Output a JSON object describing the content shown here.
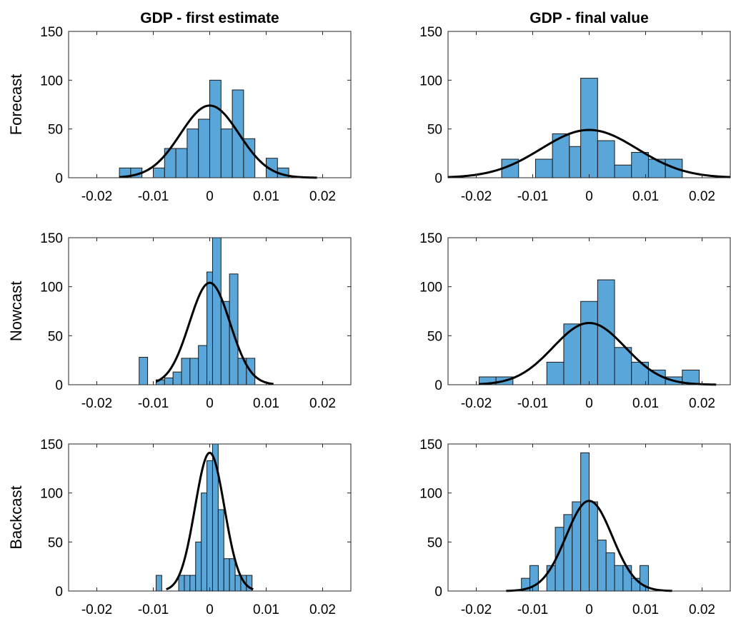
{
  "column_titles": [
    "GDP - first estimate",
    "GDP - final value"
  ],
  "row_labels": [
    "Forecast",
    "Nowcast",
    "Backcast"
  ],
  "colors": {
    "bar_fill": "#5ba6d8",
    "bar_stroke": "#1a1a1a",
    "fit_line": "#000000",
    "axis": "#262626"
  },
  "chart_data": [
    {
      "type": "bar",
      "subtype": "histogram-with-normal-fit",
      "title": "GDP - first estimate",
      "ylabel": "Forecast",
      "xlim": [
        -0.025,
        0.025
      ],
      "ylim": [
        0,
        150
      ],
      "xticks": [
        -0.02,
        -0.01,
        0,
        0.01,
        0.02
      ],
      "xtick_labels": [
        "-0.02",
        "-0.01",
        "0",
        "0.01",
        "0.02"
      ],
      "yticks": [
        0,
        50,
        100,
        150
      ],
      "ytick_labels": [
        "0",
        "50",
        "100",
        "150"
      ],
      "bin_edges": [
        -0.016,
        -0.014,
        -0.012,
        -0.01,
        -0.008,
        -0.006,
        -0.004,
        -0.002,
        0,
        0.002,
        0.004,
        0.006,
        0.008,
        0.01,
        0.012,
        0.014
      ],
      "counts": [
        10,
        10,
        0,
        10,
        30,
        30,
        50,
        60,
        100,
        50,
        90,
        40,
        0,
        20,
        10
      ],
      "fit": {
        "mean": 0.0,
        "peak": 74,
        "sd": 0.0052,
        "x_range": [
          -0.016,
          0.019
        ]
      }
    },
    {
      "type": "bar",
      "subtype": "histogram-with-normal-fit",
      "title": "GDP - final value",
      "ylabel": "",
      "xlim": [
        -0.025,
        0.025
      ],
      "ylim": [
        0,
        150
      ],
      "xticks": [
        -0.02,
        -0.01,
        0,
        0.01,
        0.02
      ],
      "xtick_labels": [
        "-0.02",
        "-0.01",
        "0",
        "0.01",
        "0.02"
      ],
      "yticks": [
        0,
        50,
        100,
        150
      ],
      "ytick_labels": [
        "0",
        "50",
        "100",
        "150"
      ],
      "bin_edges": [
        -0.0185,
        -0.0155,
        -0.0125,
        -0.0095,
        -0.0065,
        -0.0035,
        -0.0015,
        0.0015,
        0.0045,
        0.0075,
        0.0105,
        0.0135,
        0.0165
      ],
      "counts": [
        0,
        19,
        0,
        19,
        45,
        32,
        102,
        38,
        13,
        26,
        19,
        19
      ],
      "fit": {
        "mean": 0.0,
        "peak": 49,
        "sd": 0.0085,
        "x_range": [
          -0.025,
          0.025
        ]
      }
    },
    {
      "type": "bar",
      "subtype": "histogram-with-normal-fit",
      "title": "",
      "ylabel": "Nowcast",
      "xlim": [
        -0.025,
        0.025
      ],
      "ylim": [
        0,
        150
      ],
      "xticks": [
        -0.02,
        -0.01,
        0,
        0.01,
        0.02
      ],
      "xtick_labels": [
        "-0.02",
        "-0.01",
        "0",
        "0.01",
        "0.02"
      ],
      "yticks": [
        0,
        50,
        100,
        150
      ],
      "ytick_labels": [
        "0",
        "50",
        "100",
        "150"
      ],
      "bin_edges": [
        -0.0125,
        -0.011,
        -0.0095,
        -0.008,
        -0.0065,
        -0.005,
        -0.0035,
        -0.002,
        -0.0005,
        0.0005,
        0.002,
        0.0035,
        0.005,
        0.0065,
        0.008
      ],
      "counts": [
        28,
        0,
        5,
        7,
        13,
        27,
        27,
        40,
        115,
        150,
        85,
        113,
        27,
        27,
        27
      ],
      "fit": {
        "mean": 0.0,
        "peak": 104,
        "sd": 0.0036,
        "x_range": [
          -0.0095,
          0.0113
        ]
      }
    },
    {
      "type": "bar",
      "subtype": "histogram-with-normal-fit",
      "title": "",
      "ylabel": "",
      "xlim": [
        -0.025,
        0.025
      ],
      "ylim": [
        0,
        150
      ],
      "xticks": [
        -0.02,
        -0.01,
        0,
        0.01,
        0.02
      ],
      "xtick_labels": [
        "-0.02",
        "-0.01",
        "0",
        "0.01",
        "0.02"
      ],
      "yticks": [
        0,
        50,
        100,
        150
      ],
      "ytick_labels": [
        "0",
        "50",
        "100",
        "150"
      ],
      "bin_edges": [
        -0.0195,
        -0.0165,
        -0.0135,
        -0.0105,
        -0.0075,
        -0.0045,
        -0.0015,
        0.0015,
        0.0045,
        0.0075,
        0.0105,
        0.0135,
        0.0165,
        0.0195
      ],
      "counts": [
        8,
        8,
        0,
        0,
        23,
        62,
        85,
        107,
        38,
        23,
        15,
        8,
        15
      ],
      "fit": {
        "mean": 0.0,
        "peak": 63,
        "sd": 0.0064,
        "x_range": [
          -0.0195,
          0.0225
        ]
      }
    },
    {
      "type": "bar",
      "subtype": "histogram-with-normal-fit",
      "title": "",
      "ylabel": "Backcast",
      "xlim": [
        -0.025,
        0.025
      ],
      "ylim": [
        0,
        150
      ],
      "xticks": [
        -0.02,
        -0.01,
        0,
        0.01,
        0.02
      ],
      "xtick_labels": [
        "-0.02",
        "-0.01",
        "0",
        "0.01",
        "0.02"
      ],
      "yticks": [
        0,
        50,
        100,
        150
      ],
      "ytick_labels": [
        "0",
        "50",
        "100",
        "150"
      ],
      "bin_edges": [
        -0.0095,
        -0.0085,
        -0.0075,
        -0.0065,
        -0.0055,
        -0.0045,
        -0.0035,
        -0.0025,
        -0.0015,
        -0.0005,
        0.0005,
        0.0015,
        0.0025,
        0.0035,
        0.0045,
        0.0055,
        0.0065,
        0.0075
      ],
      "counts": [
        16,
        0,
        0,
        0,
        16,
        16,
        16,
        50,
        100,
        133,
        150,
        83,
        33,
        33,
        16,
        16,
        16
      ],
      "fit": {
        "mean": 0.0,
        "peak": 141,
        "sd": 0.0026,
        "x_range": [
          -0.0077,
          0.0077
        ]
      }
    },
    {
      "type": "bar",
      "subtype": "histogram-with-normal-fit",
      "title": "",
      "ylabel": "",
      "xlim": [
        -0.025,
        0.025
      ],
      "ylim": [
        0,
        150
      ],
      "xticks": [
        -0.02,
        -0.01,
        0,
        0.01,
        0.02
      ],
      "xtick_labels": [
        "-0.02",
        "-0.01",
        "0",
        "0.01",
        "0.02"
      ],
      "yticks": [
        0,
        50,
        100,
        150
      ],
      "ytick_labels": [
        "0",
        "50",
        "100",
        "150"
      ],
      "bin_edges": [
        -0.012,
        -0.0105,
        -0.009,
        -0.0075,
        -0.006,
        -0.0045,
        -0.003,
        -0.0015,
        0,
        0.0015,
        0.003,
        0.0045,
        0.006,
        0.0075,
        0.009,
        0.0105
      ],
      "counts": [
        13,
        26,
        0,
        26,
        65,
        78,
        91,
        141,
        91,
        52,
        39,
        26,
        26,
        13,
        26
      ],
      "fit": {
        "mean": 0.0,
        "peak": 92,
        "sd": 0.0041,
        "x_range": [
          -0.0147,
          0.0147
        ]
      }
    }
  ]
}
